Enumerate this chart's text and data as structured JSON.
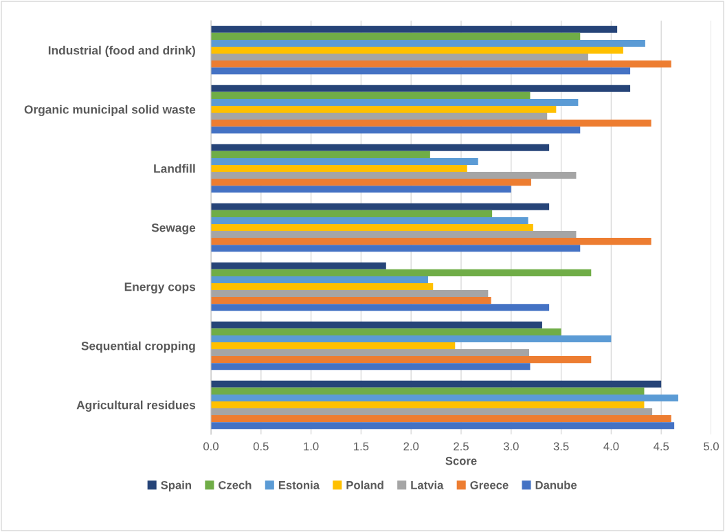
{
  "chart_data": {
    "type": "bar",
    "orientation": "horizontal",
    "xlabel": "Score",
    "categories": [
      "Industrial (food and drink)",
      "Organic municipal solid waste",
      "Landfill",
      "Sewage",
      "Energy cops",
      "Sequential cropping",
      "Agricultural residues"
    ],
    "series": [
      {
        "name": "Spain",
        "color": "#264478",
        "values": [
          4.06,
          4.19,
          3.38,
          3.38,
          1.75,
          3.31,
          4.5
        ]
      },
      {
        "name": "Czech",
        "color": "#70ad47",
        "values": [
          3.69,
          3.19,
          2.19,
          2.81,
          3.8,
          3.5,
          4.33
        ]
      },
      {
        "name": "Estonia",
        "color": "#5b9bd5",
        "values": [
          4.34,
          3.67,
          2.67,
          3.17,
          2.17,
          4.0,
          4.67
        ]
      },
      {
        "name": "Poland",
        "color": "#ffc000",
        "values": [
          4.12,
          3.45,
          2.56,
          3.22,
          2.22,
          2.44,
          4.33
        ]
      },
      {
        "name": "Latvia",
        "color": "#a5a5a5",
        "values": [
          3.77,
          3.36,
          3.65,
          3.65,
          2.77,
          3.18,
          4.41
        ]
      },
      {
        "name": "Greece",
        "color": "#ed7d31",
        "values": [
          4.6,
          4.4,
          3.2,
          4.4,
          2.8,
          3.8,
          4.6
        ]
      },
      {
        "name": "Danube",
        "color": "#4472c4",
        "values": [
          4.19,
          3.69,
          3.0,
          3.69,
          3.38,
          3.19,
          4.63
        ]
      }
    ],
    "xlim": [
      0,
      5
    ],
    "xticks": [
      {
        "value": 0,
        "label": "0.0"
      },
      {
        "value": 0.5,
        "label": "0.5"
      },
      {
        "value": 1,
        "label": "1.0"
      },
      {
        "value": 1.5,
        "label": "1.5"
      },
      {
        "value": 2,
        "label": "2.0"
      },
      {
        "value": 2.5,
        "label": "2.5"
      },
      {
        "value": 3,
        "label": "3.0"
      },
      {
        "value": 3.5,
        "label": "3.5"
      },
      {
        "value": 4,
        "label": "4.0"
      },
      {
        "value": 4.5,
        "label": "4.5"
      },
      {
        "value": 5,
        "label": "5.0"
      }
    ],
    "grid": "x",
    "legend": "bottom"
  }
}
